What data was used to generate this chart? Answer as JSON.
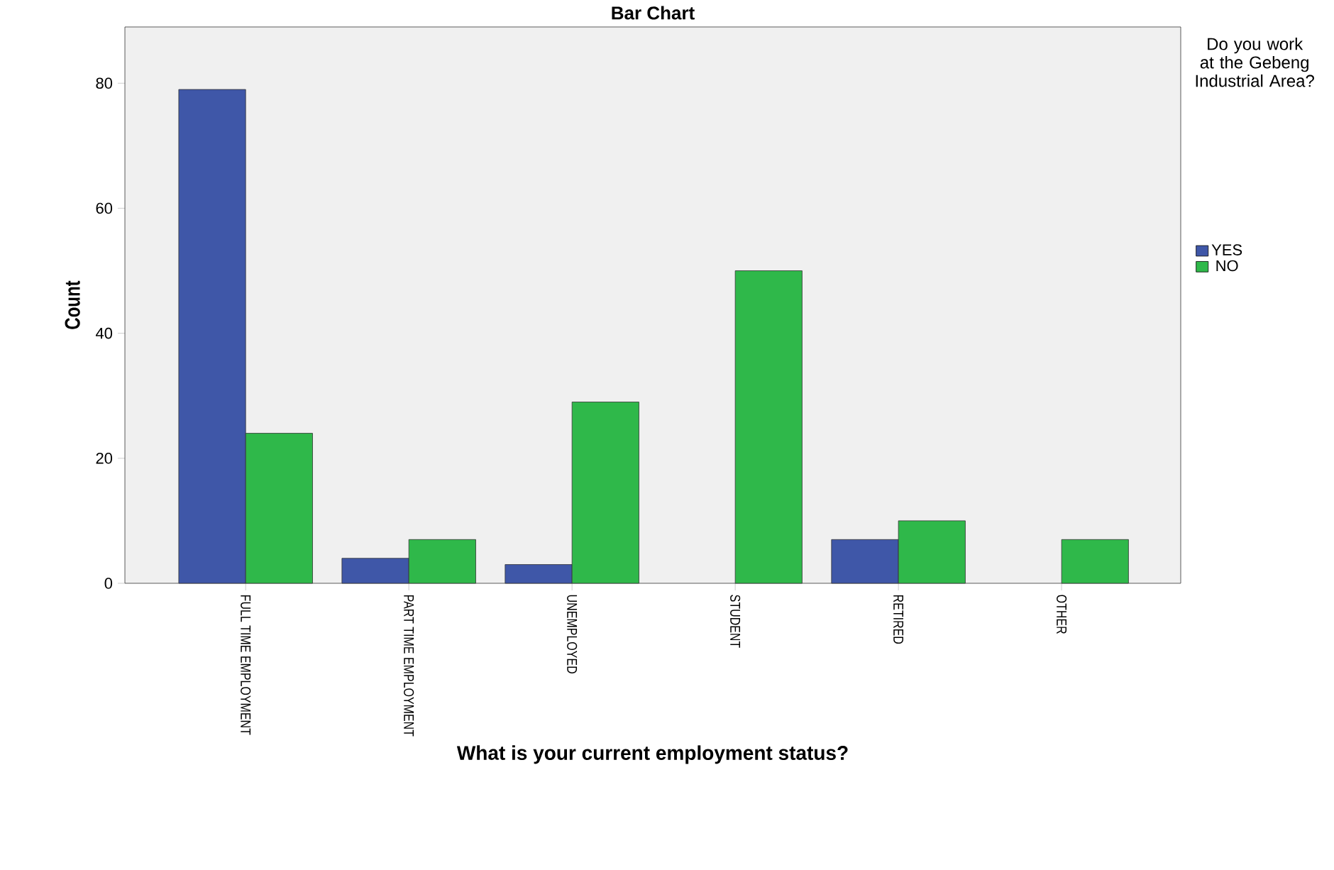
{
  "chart_data": {
    "type": "bar",
    "title": "Bar Chart",
    "xlabel": "What is your current employment status?",
    "ylabel": "Count",
    "legend_title": "Do you work at the Gebeng Industrial Area?",
    "categories": [
      "FULL TIME EMPLOYMENT",
      "PART TIME EMPLOYMENT",
      "UNEMPLOYED",
      "STUDENT",
      "RETIRED",
      "OTHER"
    ],
    "series": [
      {
        "name": "YES",
        "color": "#3f57a8",
        "values": [
          79,
          4,
          3,
          null,
          7,
          null
        ]
      },
      {
        "name": "NO",
        "color": "#2fb84a",
        "values": [
          24,
          7,
          29,
          50,
          10,
          7
        ]
      }
    ],
    "ylim": [
      0,
      89
    ],
    "yticks": [
      0,
      20,
      40,
      60,
      80
    ],
    "legend": "right",
    "grid": false
  }
}
